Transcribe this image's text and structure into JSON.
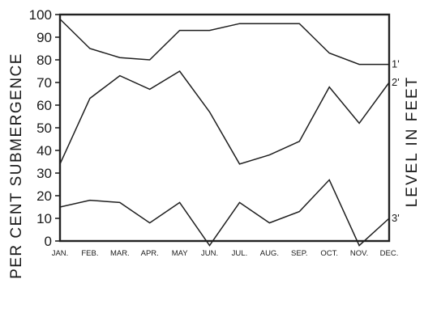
{
  "chart_data": {
    "type": "line",
    "title": "",
    "xlabel": "",
    "ylabel": "PER CENT SUBMERGENCE",
    "right_label": "LEVEL IN FEET",
    "categories": [
      "JAN.",
      "FEB.",
      "MAR.",
      "APR.",
      "MAY",
      "JUN.",
      "JUL.",
      "AUG.",
      "SEP.",
      "OCT.",
      "NOV.",
      "DEC."
    ],
    "yticks": [
      "0",
      "10",
      "20",
      "30",
      "40",
      "50",
      "60",
      "70",
      "80",
      "90",
      "100"
    ],
    "ylim": [
      0,
      100
    ],
    "grid": false,
    "series": [
      {
        "name": "1'",
        "values": [
          98,
          85,
          81,
          80,
          93,
          93,
          96,
          96,
          96,
          83,
          78,
          78
        ]
      },
      {
        "name": "2'",
        "values": [
          34,
          63,
          73,
          67,
          75,
          57,
          34,
          38,
          44,
          68,
          52,
          70
        ]
      },
      {
        "name": "3'",
        "values": [
          15,
          18,
          17,
          8,
          17,
          -2,
          17,
          8,
          13,
          27,
          -2,
          10
        ]
      }
    ]
  }
}
